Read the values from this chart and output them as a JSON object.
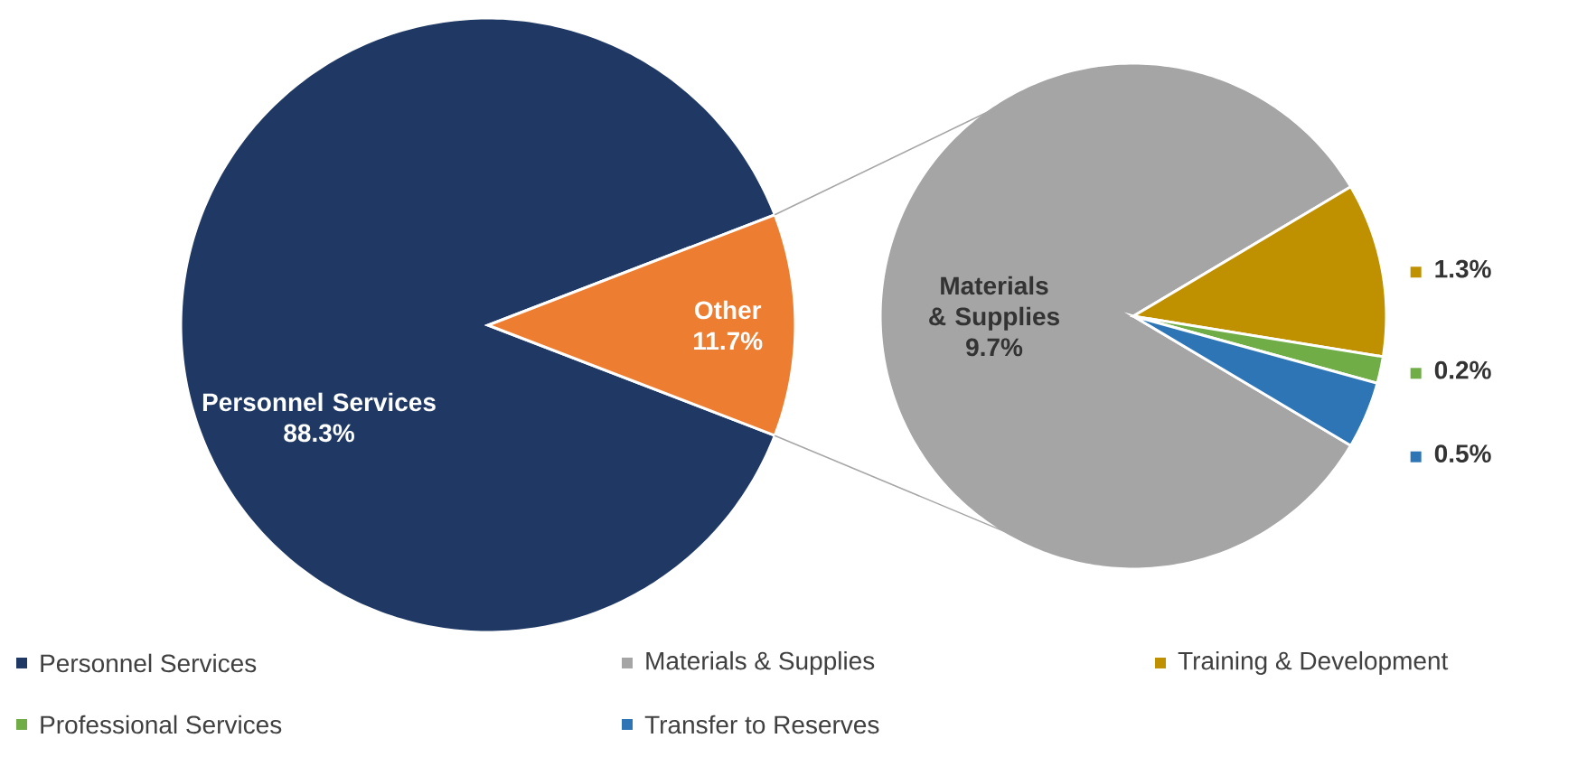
{
  "chart_data": [
    {
      "type": "pie",
      "categories": [
        "Personnel Services",
        "Other"
      ],
      "values": [
        88.3,
        11.7
      ],
      "colors": [
        "#1f3864",
        "#ed7d31"
      ],
      "value_labels": [
        "88.3%",
        "11.7%"
      ],
      "legend": "bottom"
    },
    {
      "type": "pie",
      "categories": [
        "Materials & Supplies",
        "Training & Development",
        "Professional Services",
        "Transfer to Reserves"
      ],
      "values": [
        9.7,
        1.3,
        0.2,
        0.5
      ],
      "colors": [
        "#a5a5a5",
        "#bf9000",
        "#70ad47",
        "#2e75b6"
      ],
      "value_labels": [
        "9.7%",
        "1.3%",
        "0.2%",
        "0.5%"
      ],
      "legend": "bottom"
    }
  ]
}
